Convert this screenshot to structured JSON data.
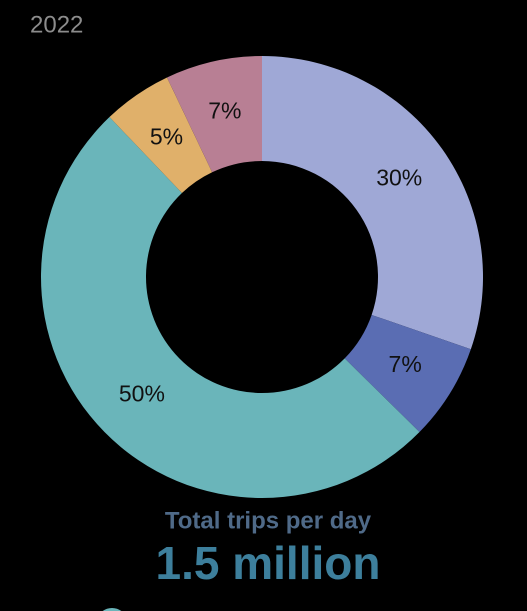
{
  "chart_data": {
    "type": "donut",
    "title": "2022",
    "values": [
      30,
      7,
      50,
      5,
      7
    ],
    "value_labels": [
      "30%",
      "7%",
      "50%",
      "5%",
      "7%"
    ],
    "colors": [
      "#9fa8d6",
      "#5a6db3",
      "#6ab5ba",
      "#e0b06a",
      "#b87f94"
    ],
    "caption": "Total trips per day",
    "total": "1.5 million"
  }
}
